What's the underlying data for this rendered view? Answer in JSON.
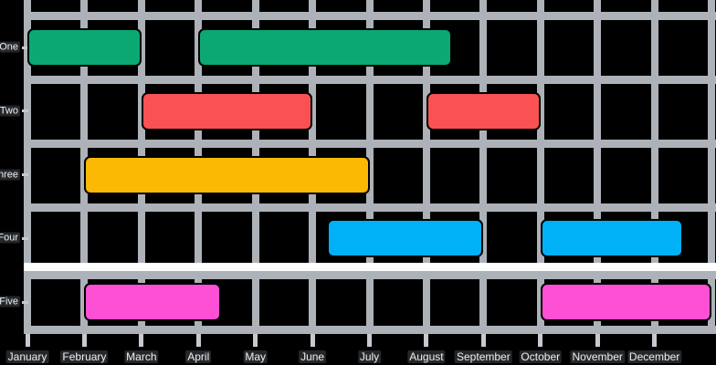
{
  "chart_data": {
    "type": "bar",
    "variant": "gantt",
    "title": "",
    "categories": [
      "One",
      "Two",
      "Three",
      "Four",
      "Five"
    ],
    "months": [
      "January",
      "February",
      "March",
      "April",
      "May",
      "June",
      "July",
      "August",
      "September",
      "October",
      "November",
      "December"
    ],
    "x_axis": {
      "unit": "month",
      "range": [
        1,
        13
      ],
      "gridlines_at_every_month": true
    },
    "y_axis": {
      "labels": [
        "One",
        "Two",
        "Three",
        "Four",
        "Five"
      ]
    },
    "colors": {
      "green": "#0ba874",
      "red": "#fa5252",
      "yellow": "#fcb904",
      "blue": "#00b1f8",
      "magenta": "#fd50d5",
      "grid_line": "#adb2b8",
      "highlight_line": "#ffffff",
      "tick": "#c6cacf",
      "background": "#000000",
      "label_text": "#e9ecef",
      "bar_border": "#000000"
    },
    "bars": [
      {
        "category": "One",
        "start_month": 1.0,
        "end_month": 3.0,
        "color": "green"
      },
      {
        "category": "One",
        "start_month": 4.0,
        "end_month": 8.45,
        "color": "green"
      },
      {
        "category": "Two",
        "start_month": 3.0,
        "end_month": 6.0,
        "color": "red"
      },
      {
        "category": "Two",
        "start_month": 8.0,
        "end_month": 10.0,
        "color": "red"
      },
      {
        "category": "Three",
        "start_month": 2.0,
        "end_month": 7.0,
        "color": "yellow"
      },
      {
        "category": "Four",
        "start_month": 6.25,
        "end_month": 9.0,
        "color": "blue"
      },
      {
        "category": "Four",
        "start_month": 10.0,
        "end_month": 12.5,
        "color": "blue"
      },
      {
        "category": "Five",
        "start_month": 2.0,
        "end_month": 4.4,
        "color": "magenta"
      },
      {
        "category": "Five",
        "start_month": 10.0,
        "end_month": 13.0,
        "color": "magenta"
      }
    ],
    "grid_layout": {
      "highlight_divider_between": [
        "Four",
        "Five"
      ],
      "legend": "none"
    }
  }
}
